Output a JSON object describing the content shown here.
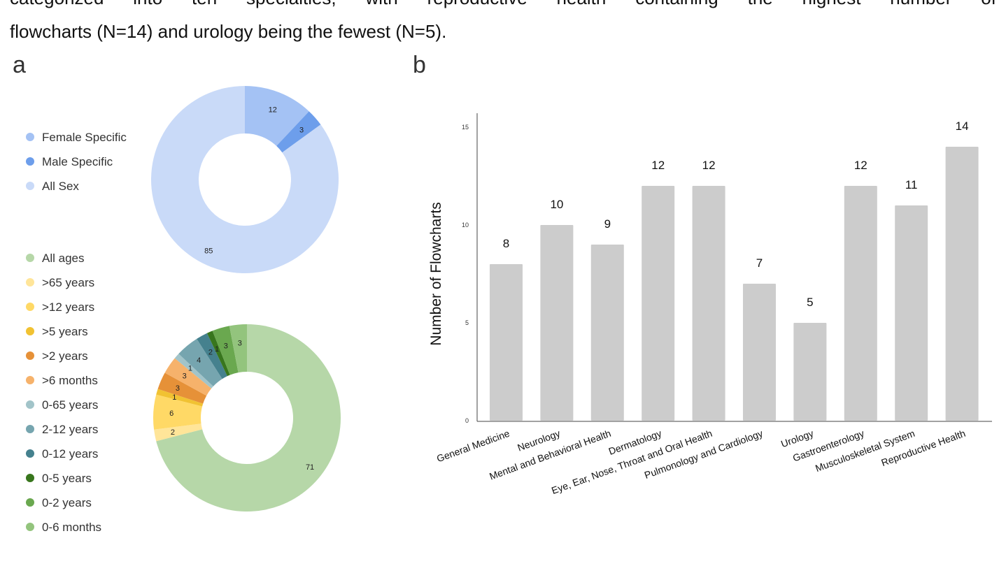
{
  "text": {
    "line1": "categorized into ten specialties, with reproductive health containing the highest number of",
    "line2": "flowcharts (N=14) and urology being the fewest (N=5)."
  },
  "panels": {
    "a": "a",
    "b": "b"
  },
  "chart_data": [
    {
      "type": "pie",
      "subtype": "donut",
      "legend_placement": "left",
      "labels": [
        "Female Specific",
        "Male Specific",
        "All Sex"
      ],
      "values": [
        12,
        3,
        85
      ],
      "colors": [
        "#a4c2f4",
        "#6d9eeb",
        "#c9daf8"
      ]
    },
    {
      "type": "pie",
      "subtype": "donut",
      "legend_placement": "left",
      "labels": [
        "All ages",
        ">65 years",
        ">12 years",
        ">5 years",
        ">2 years",
        ">6 months",
        "0-65 years",
        "2-12 years",
        "0-12 years",
        "0-5 years",
        "0-2 years",
        "0-6 months"
      ],
      "values": [
        71,
        2,
        6,
        1,
        3,
        3,
        1,
        4,
        2,
        1,
        3,
        3
      ],
      "colors": [
        "#b6d7a8",
        "#ffe599",
        "#ffd966",
        "#f1c232",
        "#e69138",
        "#f6b26b",
        "#a2c4c9",
        "#76a5af",
        "#45818e",
        "#38761d",
        "#6aa84f",
        "#93c47d"
      ]
    },
    {
      "type": "bar",
      "categories": [
        "General Medicine",
        "Neurology",
        "Mental and Behavioral Health",
        "Dermatology",
        "Eye, Ear, Nose, Throat and Oral Health",
        "Pulmonology and Cardiology",
        "Urology",
        "Gastroenterology",
        "Musculoskeletal System",
        "Reproductive Health"
      ],
      "values": [
        8,
        10,
        9,
        12,
        12,
        7,
        5,
        12,
        11,
        14
      ],
      "ylabel": "Number of Flowcharts",
      "xlabel": "",
      "ylim": [
        0,
        15
      ],
      "yticks": [
        0,
        5,
        10,
        15
      ],
      "grid": false,
      "bar_color": "#cccccc"
    }
  ]
}
